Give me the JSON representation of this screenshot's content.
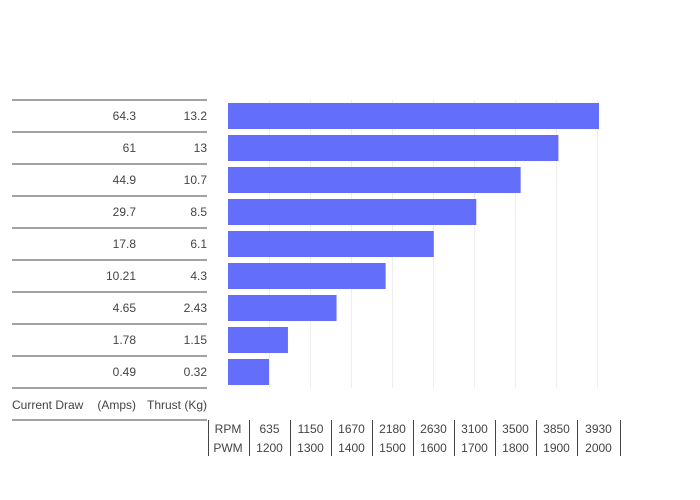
{
  "chart_data": {
    "type": "bar",
    "orientation": "horizontal",
    "colors": {
      "bar": "#636efa",
      "rule": "#444444",
      "grid": "#eeeeee",
      "text": "#444444"
    },
    "table": {
      "headers": [
        "Current Draw",
        "(Amps)",
        "Thrust (Kg)"
      ],
      "rows": [
        {
          "amps": "64.3",
          "thrust": "13.2"
        },
        {
          "amps": "61",
          "thrust": "13"
        },
        {
          "amps": "44.9",
          "thrust": "10.7"
        },
        {
          "amps": "29.7",
          "thrust": "8.5"
        },
        {
          "amps": "17.8",
          "thrust": "6.1"
        },
        {
          "amps": "10.21",
          "thrust": "4.3"
        },
        {
          "amps": "4.65",
          "thrust": "2.43"
        },
        {
          "amps": "1.78",
          "thrust": "1.15"
        },
        {
          "amps": "0.49",
          "thrust": "0.32"
        }
      ]
    },
    "bars": {
      "values": [
        3930,
        3500,
        3100,
        2630,
        2180,
        1670,
        1150,
        635,
        0
      ]
    },
    "x_axis": {
      "row1_label": "RPM",
      "row2_label": "PWM",
      "rpm_ticks": [
        "635",
        "1150",
        "1670",
        "2180",
        "2630",
        "3100",
        "3500",
        "3850",
        "3930"
      ],
      "pwm_ticks": [
        "1200",
        "1300",
        "1400",
        "1500",
        "1600",
        "1700",
        "1800",
        "1900",
        "2000"
      ]
    },
    "grid": true
  }
}
